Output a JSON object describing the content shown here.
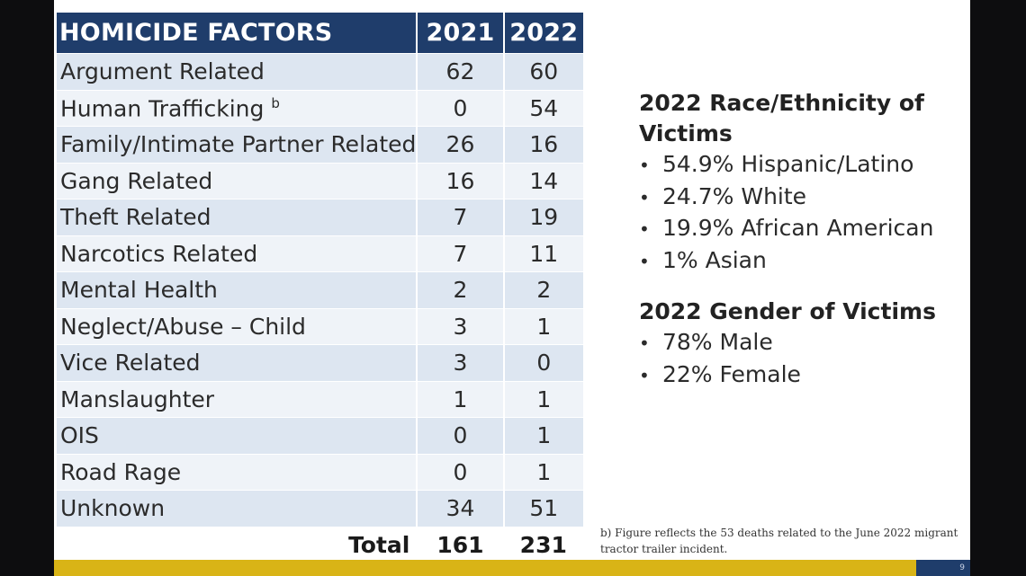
{
  "table": {
    "header": {
      "label": "HOMICIDE FACTORS",
      "year1": "2021",
      "year2": "2022"
    },
    "rows": [
      {
        "label": "Argument Related",
        "v2021": "62",
        "v2022": "60"
      },
      {
        "label": "Human Trafficking",
        "sup": "b",
        "v2021": "0",
        "v2022": "54"
      },
      {
        "label": "Family/Intimate Partner Related",
        "v2021": "26",
        "v2022": "16"
      },
      {
        "label": "Gang Related",
        "v2021": "16",
        "v2022": "14"
      },
      {
        "label": "Theft Related",
        "v2021": "7",
        "v2022": "19"
      },
      {
        "label": "Narcotics Related",
        "v2021": "7",
        "v2022": "11"
      },
      {
        "label": "Mental Health",
        "v2021": "2",
        "v2022": "2"
      },
      {
        "label": "Neglect/Abuse – Child",
        "v2021": "3",
        "v2022": "1"
      },
      {
        "label": "Vice Related",
        "v2021": "3",
        "v2022": "0"
      },
      {
        "label": "Manslaughter",
        "v2021": "1",
        "v2022": "1"
      },
      {
        "label": "OIS",
        "v2021": "0",
        "v2022": "1"
      },
      {
        "label": "Road Rage",
        "v2021": "0",
        "v2022": "1"
      },
      {
        "label": "Unknown",
        "v2021": "34",
        "v2022": "51"
      }
    ],
    "total": {
      "label": "Total",
      "v2021": "161",
      "v2022": "231"
    }
  },
  "race": {
    "title": "2022 Race/Ethnicity of Victims",
    "items": [
      "54.9% Hispanic/Latino",
      "24.7% White",
      "19.9% African American",
      "1% Asian"
    ]
  },
  "gender": {
    "title": "2022 Gender of Victims",
    "items": [
      "78% Male",
      "22% Female"
    ]
  },
  "footnote": "b) Figure reflects the 53 deaths related to the June 2022 migrant tractor trailer incident.",
  "page_number": "9",
  "bullet": "•",
  "colors": {
    "header": "#1f3d6b",
    "row_odd": "#dde6f1",
    "row_even": "#eff3f8",
    "accent_bar": "#d9b416"
  }
}
